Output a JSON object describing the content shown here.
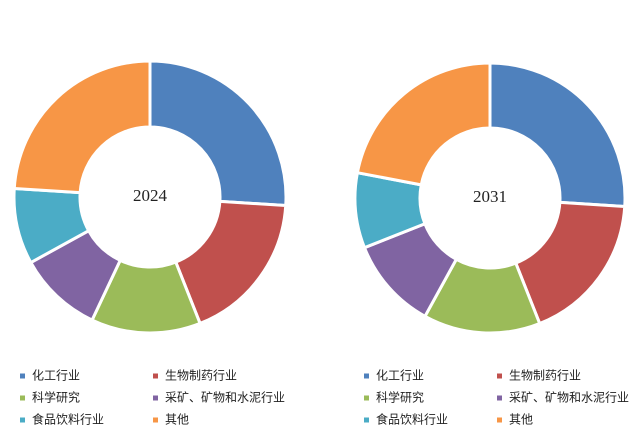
{
  "chart_data": [
    {
      "type": "pie",
      "title": "2024",
      "categories": [
        "化工行业",
        "生物制药行业",
        "科学研究",
        "采矿、矿物和水泥行业",
        "食品饮料行业",
        "其他"
      ],
      "values": [
        26,
        18,
        13,
        10,
        9,
        24
      ],
      "colors": [
        "#4f81bd",
        "#c0504d",
        "#9bbb59",
        "#8064a2",
        "#4bacc6",
        "#f79646"
      ]
    },
    {
      "type": "pie",
      "title": "2031",
      "categories": [
        "化工行业",
        "生物制药行业",
        "科学研究",
        "采矿、矿物和水泥行业",
        "食品饮料行业",
        "其他"
      ],
      "values": [
        26,
        18,
        14,
        11,
        9,
        22
      ],
      "colors": [
        "#4f81bd",
        "#c0504d",
        "#9bbb59",
        "#8064a2",
        "#4bacc6",
        "#f79646"
      ]
    }
  ]
}
